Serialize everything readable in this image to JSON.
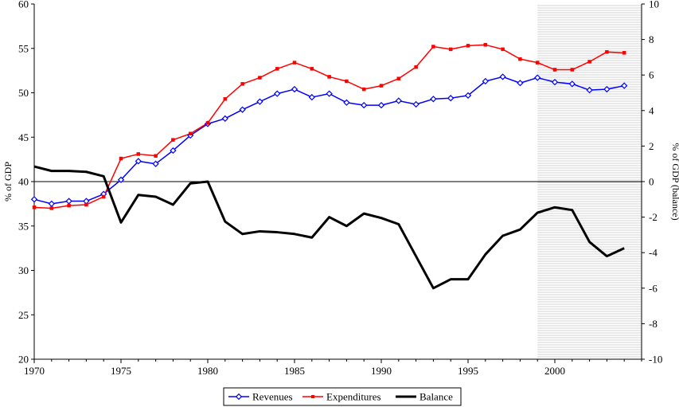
{
  "chart_data": {
    "type": "line",
    "title": "",
    "x": [
      1970,
      1971,
      1972,
      1973,
      1974,
      1975,
      1976,
      1977,
      1978,
      1979,
      1980,
      1981,
      1982,
      1983,
      1984,
      1985,
      1986,
      1987,
      1988,
      1989,
      1990,
      1991,
      1992,
      1993,
      1994,
      1995,
      1996,
      1997,
      1998,
      1999,
      2000,
      2001,
      2002,
      2003,
      2004
    ],
    "xticks": [
      1970,
      1975,
      1980,
      1985,
      1990,
      1995,
      2000
    ],
    "xlim": [
      1970,
      2005
    ],
    "ylabel_left": "% of GDP",
    "ylim_left": [
      20,
      60
    ],
    "yticks_left": [
      20,
      25,
      30,
      35,
      40,
      45,
      50,
      55,
      60
    ],
    "ylabel_right": "% of GDP (balance)",
    "ylim_right": [
      -10,
      10
    ],
    "yticks_right": [
      -10,
      -8,
      -6,
      -4,
      -2,
      0,
      2,
      4,
      6,
      8,
      10
    ],
    "shaded_region_x": [
      1999,
      2005
    ],
    "legend_position": "bottom",
    "series": [
      {
        "name": "Revenues",
        "axis": "left",
        "color": "#0000ff",
        "marker": "diamond",
        "values": [
          38.0,
          37.5,
          37.8,
          37.8,
          38.6,
          40.2,
          42.3,
          42.0,
          43.5,
          45.2,
          46.5,
          47.1,
          48.1,
          49.0,
          49.9,
          50.4,
          49.5,
          49.9,
          48.9,
          48.6,
          48.6,
          49.1,
          48.7,
          49.3,
          49.4,
          49.7,
          51.3,
          51.8,
          51.1,
          51.7,
          51.2,
          51.0,
          50.3,
          50.4,
          50.8
        ]
      },
      {
        "name": "Expenditures",
        "axis": "left",
        "color": "#ff0000",
        "marker": "square",
        "values": [
          37.1,
          37.0,
          37.3,
          37.4,
          38.3,
          42.6,
          43.1,
          42.9,
          44.7,
          45.4,
          46.6,
          49.3,
          51.0,
          51.7,
          52.7,
          53.4,
          52.7,
          51.8,
          51.3,
          50.4,
          50.8,
          51.6,
          52.9,
          55.2,
          54.9,
          55.3,
          55.4,
          54.9,
          53.8,
          53.4,
          52.6,
          52.6,
          53.5,
          54.6,
          54.5
        ]
      },
      {
        "name": "Balance",
        "axis": "right",
        "color": "#000000",
        "marker": "none",
        "values": [
          0.85,
          0.6,
          0.6,
          0.55,
          0.3,
          -2.3,
          -0.75,
          -0.85,
          -1.3,
          -0.1,
          0.0,
          -2.25,
          -2.95,
          -2.8,
          -2.85,
          -2.95,
          -3.15,
          -2.0,
          -2.5,
          -1.8,
          -2.05,
          -2.4,
          -4.2,
          -6.0,
          -5.5,
          -5.5,
          -4.1,
          -3.05,
          -2.7,
          -1.75,
          -1.45,
          -1.6,
          -3.4,
          -4.2,
          -3.75
        ]
      }
    ]
  }
}
